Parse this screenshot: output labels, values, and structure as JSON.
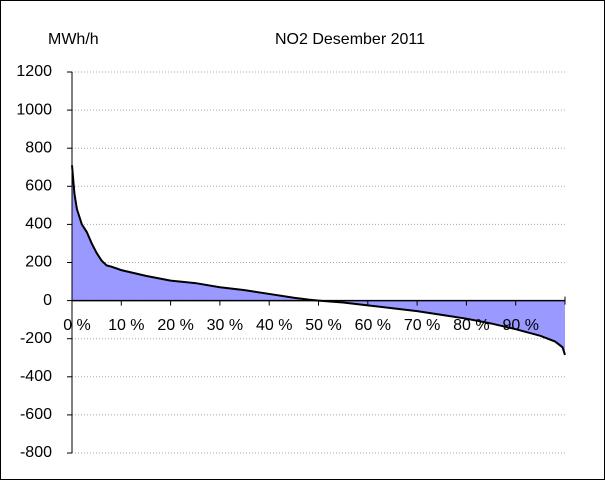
{
  "chart_data": {
    "type": "area",
    "title": "NO2  Desember 2011",
    "y_label": "MWh/h",
    "x": [
      0,
      0.5,
      1,
      2,
      3,
      4,
      5,
      6,
      7,
      8,
      10,
      15,
      20,
      25,
      30,
      35,
      40,
      45,
      48,
      50,
      55,
      60,
      65,
      70,
      75,
      80,
      85,
      90,
      95,
      98,
      99.5,
      100
    ],
    "series": [
      {
        "name": "NO2",
        "color": "#9999ff",
        "line_color": "#000000",
        "values": [
          710,
          560,
          480,
          400,
          360,
          300,
          250,
          210,
          185,
          178,
          160,
          130,
          105,
          92,
          70,
          55,
          35,
          15,
          5,
          0,
          -10,
          -25,
          -40,
          -55,
          -75,
          -95,
          -120,
          -150,
          -185,
          -215,
          -245,
          -285
        ]
      }
    ],
    "xlim": [
      0,
      100
    ],
    "xticks": [
      {
        "value": 0,
        "label": "0 %"
      },
      {
        "value": 10,
        "label": "10 %"
      },
      {
        "value": 20,
        "label": "20 %"
      },
      {
        "value": 30,
        "label": "30 %"
      },
      {
        "value": 40,
        "label": "40 %"
      },
      {
        "value": 50,
        "label": "50 %"
      },
      {
        "value": 60,
        "label": "60 %"
      },
      {
        "value": 70,
        "label": "70 %"
      },
      {
        "value": 80,
        "label": "80 %"
      },
      {
        "value": 90,
        "label": "90 %"
      }
    ],
    "ylim": [
      -800,
      1200
    ],
    "yticks": [
      -800,
      -600,
      -400,
      -200,
      0,
      200,
      400,
      600,
      800,
      1000,
      1200
    ],
    "grid": true
  }
}
